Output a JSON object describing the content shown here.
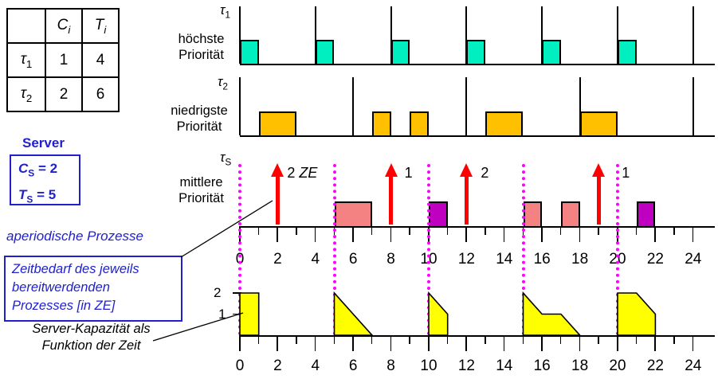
{
  "colors": {
    "blue": "#2020cc",
    "cyan": "#00efc1",
    "orange": "#ffc000",
    "pink": "#f58282",
    "purple": "#c000c0",
    "red": "#ff0000",
    "magenta": "#ff00ff",
    "yellow": "#ffff00"
  },
  "table": {
    "headers": {
      "c": "C",
      "c_sub": "i",
      "t": "T",
      "t_sub": "i"
    },
    "rows": [
      {
        "sym": "τ",
        "sub": "1",
        "c": "1",
        "t": "4"
      },
      {
        "sym": "τ",
        "sub": "2",
        "c": "2",
        "t": "6"
      }
    ]
  },
  "server": {
    "title": "Server",
    "c": "C",
    "c_sub": "S",
    "c_val": "= 2",
    "t": "T",
    "t_sub": "S",
    "t_val": "= 5"
  },
  "annotations": {
    "aperiodic": "aperiodische Prozesse",
    "zeitbedarf": [
      "Zeitbedarf des jeweils",
      "bereitwerdenden",
      "Prozesses [in ZE]"
    ],
    "kapazitaet": [
      "Server-Kapazität als",
      "Funktion der Zeit"
    ]
  },
  "rows": {
    "tau1": {
      "symbol": "τ",
      "sub": "1",
      "priority": [
        "höchste",
        "Priorität"
      ],
      "releases": [
        0,
        4,
        8,
        12,
        16,
        20,
        24
      ],
      "blocks": [
        [
          0,
          1
        ],
        [
          4,
          5
        ],
        [
          8,
          9
        ],
        [
          12,
          13
        ],
        [
          16,
          17
        ],
        [
          20,
          21
        ]
      ]
    },
    "tau2": {
      "symbol": "τ",
      "sub": "2",
      "priority": [
        "niedrigste",
        "Priorität"
      ],
      "releases": [
        0,
        6,
        12,
        18,
        24
      ],
      "blocks": [
        [
          1,
          3
        ],
        [
          7,
          8
        ],
        [
          9,
          10
        ],
        [
          13,
          15
        ],
        [
          18,
          20
        ]
      ]
    },
    "server_row": {
      "symbol": "τ",
      "sub": "S",
      "priority": [
        "mittlere",
        "Priorität"
      ],
      "blocks": [
        {
          "from": 5,
          "to": 7,
          "color": "pink"
        },
        {
          "from": 10,
          "to": 11,
          "color": "purple"
        },
        {
          "from": 15,
          "to": 16,
          "color": "pink"
        },
        {
          "from": 17,
          "to": 18,
          "color": "pink"
        },
        {
          "from": 21,
          "to": 22,
          "color": "purple"
        }
      ],
      "arrows": [
        {
          "t": 2,
          "num": "2",
          "unit": "ZE",
          "label_dx": 12
        },
        {
          "t": 8,
          "num": "1",
          "unit": "",
          "label_dx": 17
        },
        {
          "t": 12,
          "num": "2",
          "unit": "",
          "label_dx": 18
        },
        {
          "t": 19,
          "num": "1",
          "unit": "",
          "label_dx": 29
        }
      ]
    }
  },
  "timeline": {
    "min": 0,
    "max": 24,
    "label_step": 2,
    "labels": [
      "0",
      "2",
      "4",
      "6",
      "8",
      "10",
      "12",
      "14",
      "16",
      "18",
      "20",
      "22",
      "24"
    ],
    "replenishment_times": [
      0,
      5,
      10,
      15,
      20
    ]
  },
  "capacity": {
    "y_labels": [
      "2",
      "1"
    ],
    "shapes": [
      [
        [
          0,
          0
        ],
        [
          0,
          2
        ],
        [
          1,
          2
        ],
        [
          1,
          0
        ]
      ],
      [
        [
          5,
          0
        ],
        [
          5,
          2
        ],
        [
          7,
          0
        ]
      ],
      [
        [
          10,
          0
        ],
        [
          10,
          2
        ],
        [
          11,
          1
        ],
        [
          11,
          0
        ]
      ],
      [
        [
          15,
          0
        ],
        [
          15,
          2
        ],
        [
          16,
          1
        ],
        [
          17,
          1
        ],
        [
          18,
          0
        ]
      ],
      [
        [
          20,
          0
        ],
        [
          20,
          2
        ],
        [
          21,
          2
        ],
        [
          22,
          1
        ],
        [
          22,
          0
        ]
      ]
    ]
  }
}
